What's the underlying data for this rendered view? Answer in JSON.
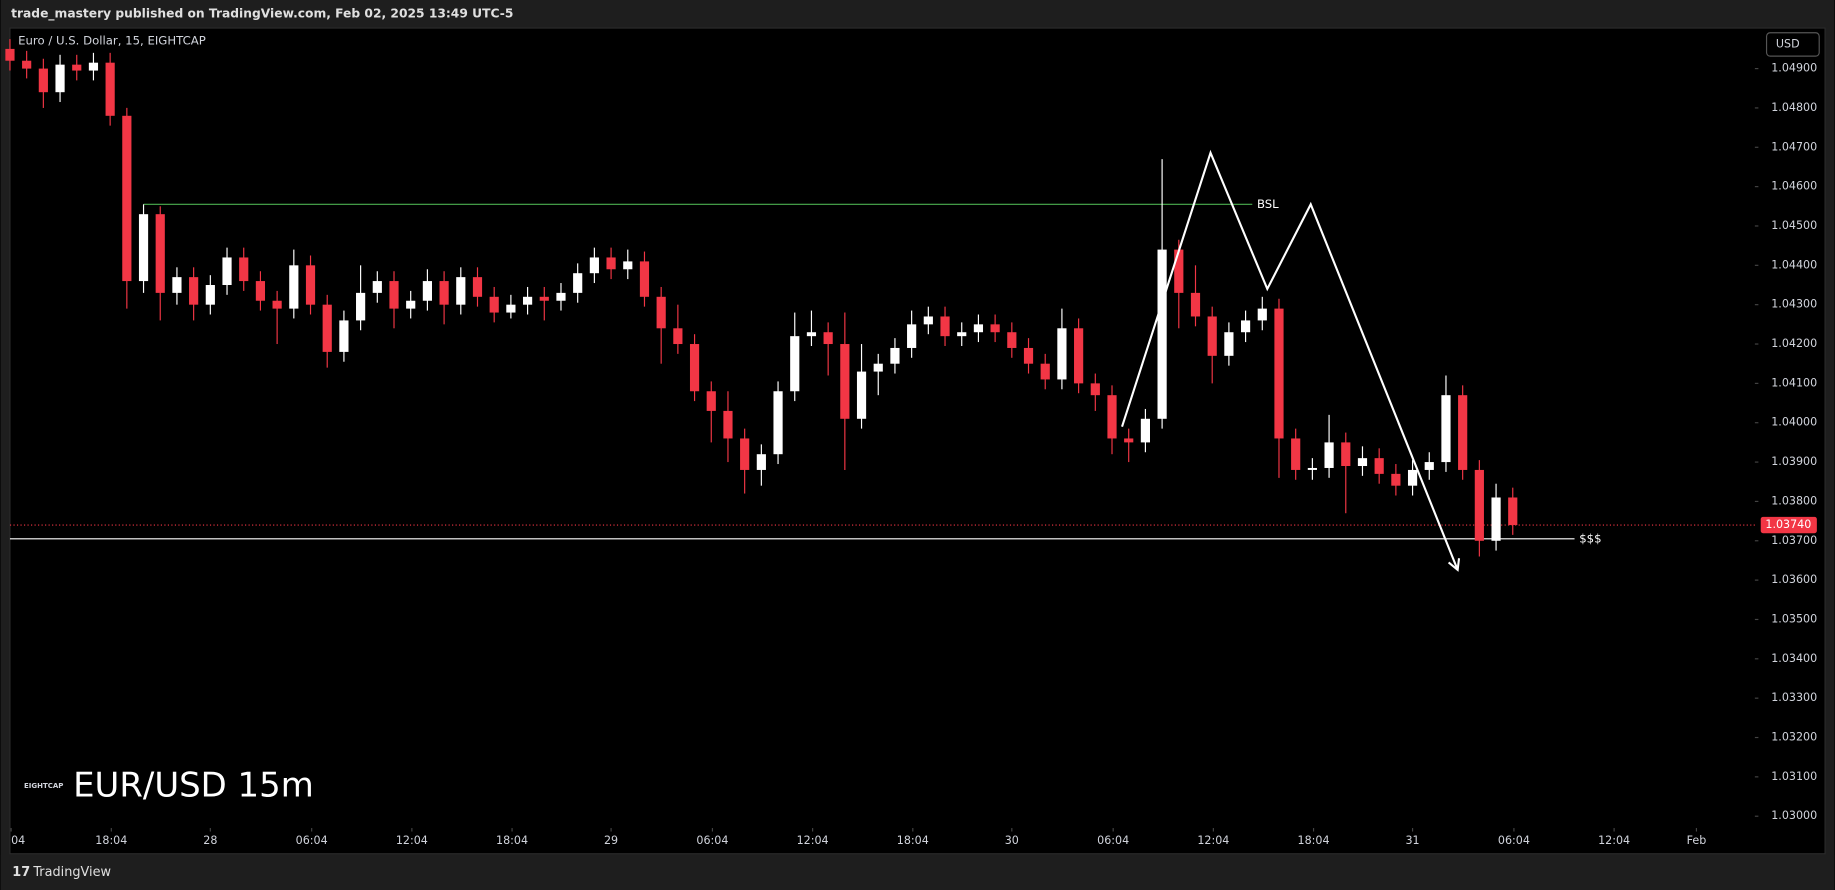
{
  "header": {
    "published": "trade_mastery published on TradingView.com, Feb 02, 2025 13:49 UTC-5"
  },
  "footer": {
    "brand": "TradingView"
  },
  "currency_button": "USD",
  "broker_logo": "EIGHTCAP",
  "watermark": "EUR/USD 15m",
  "chart_data": {
    "type": "candlestick",
    "title": "Euro / U.S. Dollar, 15, EIGHTCAP",
    "up_color": "#ffffff",
    "down_color": "#f23645",
    "x": [
      12,
      13,
      14,
      15,
      16,
      17,
      18,
      19,
      20,
      21,
      22,
      23,
      24,
      25,
      26,
      27,
      28,
      29,
      30,
      31,
      32,
      33,
      34,
      35,
      36,
      37,
      38,
      39,
      40,
      41,
      42,
      43,
      44,
      45,
      46,
      47,
      48,
      49,
      50,
      51,
      52,
      53,
      54,
      55,
      56,
      57,
      58,
      59,
      60,
      61,
      62,
      63,
      64,
      65,
      66,
      67,
      68,
      69,
      70,
      71,
      72,
      73,
      74,
      75,
      76,
      77,
      78,
      79,
      80,
      81,
      82,
      83,
      84,
      85,
      86,
      87,
      88,
      89,
      90,
      91,
      92,
      93,
      94,
      95,
      96,
      97,
      98,
      99,
      100,
      101,
      102
    ],
    "open": [
      1.0495,
      1.0492,
      1.049,
      1.0484,
      1.0491,
      1.04895,
      1.04915,
      1.0478,
      1.0436,
      1.0453,
      1.0433,
      1.0437,
      1.043,
      1.0435,
      1.0442,
      1.0436,
      1.0431,
      1.0429,
      1.044,
      1.043,
      1.0418,
      1.0426,
      1.0433,
      1.0436,
      1.0429,
      1.0431,
      1.0436,
      1.043,
      1.0437,
      1.0432,
      1.0428,
      1.043,
      1.0432,
      1.0431,
      1.0433,
      1.0438,
      1.0442,
      1.0439,
      1.0441,
      1.0432,
      1.0424,
      1.042,
      1.0408,
      1.0403,
      1.0396,
      1.0388,
      1.0392,
      1.0408,
      1.0422,
      1.0423,
      1.042,
      1.0401,
      1.0413,
      1.0415,
      1.0419,
      1.0425,
      1.0427,
      1.0422,
      1.0423,
      1.0425,
      1.0423,
      1.0419,
      1.0415,
      1.0411,
      1.0424,
      1.041,
      1.0407,
      1.0396,
      1.0395,
      1.0401,
      1.0444,
      1.0433,
      1.0427,
      1.0417,
      1.0423,
      1.0426,
      1.0429,
      1.0396,
      1.0388,
      1.03885,
      1.0395,
      1.0389,
      1.0391,
      1.0387,
      1.0384,
      1.0388,
      1.039,
      1.0407,
      1.0388,
      1.037,
      1.0381
    ],
    "high": [
      1.04975,
      1.04945,
      1.04925,
      1.04935,
      1.04935,
      1.0494,
      1.0494,
      1.048,
      1.04555,
      1.0455,
      1.04395,
      1.04395,
      1.04375,
      1.04445,
      1.04445,
      1.04385,
      1.04335,
      1.0444,
      1.04425,
      1.04325,
      1.04285,
      1.044,
      1.04385,
      1.04385,
      1.04335,
      1.0439,
      1.04385,
      1.04395,
      1.04395,
      1.04345,
      1.04325,
      1.04345,
      1.04345,
      1.04355,
      1.04405,
      1.04445,
      1.04445,
      1.0444,
      1.04435,
      1.04345,
      1.043,
      1.04225,
      1.04105,
      1.0408,
      1.03985,
      1.03945,
      1.04105,
      1.0428,
      1.04285,
      1.04255,
      1.0428,
      1.042,
      1.04175,
      1.04215,
      1.04285,
      1.04295,
      1.04295,
      1.04255,
      1.04275,
      1.04275,
      1.04255,
      1.04215,
      1.04175,
      1.0429,
      1.04265,
      1.04125,
      1.04095,
      1.03985,
      1.04035,
      1.0467,
      1.04465,
      1.044,
      1.04295,
      1.04255,
      1.04285,
      1.0432,
      1.04315,
      1.03985,
      1.0391,
      1.0402,
      1.03975,
      1.0394,
      1.03935,
      1.03895,
      1.03905,
      1.03925,
      1.0412,
      1.04095,
      1.03905,
      1.03845,
      1.03835
    ],
    "low": [
      1.04895,
      1.04875,
      1.048,
      1.04815,
      1.0487,
      1.0487,
      1.04755,
      1.0429,
      1.0433,
      1.0426,
      1.043,
      1.0426,
      1.04275,
      1.04325,
      1.04335,
      1.04285,
      1.042,
      1.04265,
      1.04275,
      1.0414,
      1.04155,
      1.04235,
      1.04305,
      1.0424,
      1.04265,
      1.04285,
      1.0425,
      1.04275,
      1.04295,
      1.04255,
      1.04265,
      1.04275,
      1.0426,
      1.04285,
      1.04305,
      1.04355,
      1.04365,
      1.04365,
      1.04295,
      1.0415,
      1.04175,
      1.04055,
      1.0395,
      1.039,
      1.0382,
      1.0384,
      1.03895,
      1.04055,
      1.04195,
      1.0412,
      1.0388,
      1.03985,
      1.0407,
      1.04125,
      1.04165,
      1.04225,
      1.04195,
      1.04195,
      1.04205,
      1.04205,
      1.04165,
      1.04125,
      1.04085,
      1.04085,
      1.04075,
      1.0403,
      1.0392,
      1.039,
      1.03925,
      1.03985,
      1.0424,
      1.04245,
      1.041,
      1.04145,
      1.04205,
      1.04235,
      1.0386,
      1.03855,
      1.03855,
      1.0386,
      1.0377,
      1.03865,
      1.03845,
      1.03815,
      1.03815,
      1.03855,
      1.03875,
      1.03855,
      1.0366,
      1.03675,
      1.03715
    ],
    "close": [
      1.0492,
      1.049,
      1.0484,
      1.0491,
      1.04895,
      1.04915,
      1.0478,
      1.0436,
      1.0453,
      1.0433,
      1.0437,
      1.043,
      1.0435,
      1.0442,
      1.0436,
      1.0431,
      1.0429,
      1.044,
      1.043,
      1.0418,
      1.0426,
      1.0433,
      1.0436,
      1.0429,
      1.0431,
      1.0436,
      1.043,
      1.0437,
      1.0432,
      1.0428,
      1.043,
      1.0432,
      1.0431,
      1.0433,
      1.0438,
      1.0442,
      1.0439,
      1.0441,
      1.0432,
      1.0424,
      1.042,
      1.0408,
      1.0403,
      1.0396,
      1.0388,
      1.0392,
      1.0408,
      1.0422,
      1.0423,
      1.042,
      1.0401,
      1.0413,
      1.0415,
      1.0419,
      1.0425,
      1.0427,
      1.0422,
      1.0423,
      1.0425,
      1.0423,
      1.0419,
      1.0415,
      1.0411,
      1.0424,
      1.041,
      1.0407,
      1.0396,
      1.0395,
      1.0401,
      1.0444,
      1.0433,
      1.0427,
      1.0417,
      1.0423,
      1.0426,
      1.0429,
      1.0396,
      1.0388,
      1.03885,
      1.0395,
      1.0389,
      1.0391,
      1.0387,
      1.0384,
      1.0388,
      1.039,
      1.0407,
      1.0388,
      1.037,
      1.0381,
      1.0374
    ],
    "xlim": [
      12,
      116.5
    ],
    "ylim": [
      1.0297,
      1.05
    ],
    "xticks": [
      {
        "value": 12.07,
        "label": "04"
      },
      {
        "value": 18.07,
        "label": "18:04"
      },
      {
        "value": 24,
        "label": "28"
      },
      {
        "value": 30.07,
        "label": "06:04"
      },
      {
        "value": 36.07,
        "label": "12:04"
      },
      {
        "value": 42.07,
        "label": "18:04"
      },
      {
        "value": 48,
        "label": "29"
      },
      {
        "value": 54.07,
        "label": "06:04"
      },
      {
        "value": 60.07,
        "label": "12:04"
      },
      {
        "value": 66.07,
        "label": "18:04"
      },
      {
        "value": 72,
        "label": "30"
      },
      {
        "value": 78.07,
        "label": "06:04"
      },
      {
        "value": 84.07,
        "label": "12:04"
      },
      {
        "value": 90.07,
        "label": "18:04"
      },
      {
        "value": 96,
        "label": "31"
      },
      {
        "value": 102.07,
        "label": "06:04"
      },
      {
        "value": 108.07,
        "label": "12:04"
      },
      {
        "value": 113,
        "label": "Feb"
      }
    ],
    "yticks": [
      {
        "value": 1.049,
        "label": "1.04900"
      },
      {
        "value": 1.048,
        "label": "1.04800"
      },
      {
        "value": 1.047,
        "label": "1.04700"
      },
      {
        "value": 1.046,
        "label": "1.04600"
      },
      {
        "value": 1.045,
        "label": "1.04500"
      },
      {
        "value": 1.044,
        "label": "1.04400"
      },
      {
        "value": 1.043,
        "label": "1.04300"
      },
      {
        "value": 1.042,
        "label": "1.04200"
      },
      {
        "value": 1.041,
        "label": "1.04100"
      },
      {
        "value": 1.04,
        "label": "1.04000"
      },
      {
        "value": 1.039,
        "label": "1.03900"
      },
      {
        "value": 1.038,
        "label": "1.03800"
      },
      {
        "value": 1.037,
        "label": "1.03700"
      },
      {
        "value": 1.036,
        "label": "1.03600"
      },
      {
        "value": 1.035,
        "label": "1.03500"
      },
      {
        "value": 1.034,
        "label": "1.03400"
      },
      {
        "value": 1.033,
        "label": "1.03300"
      },
      {
        "value": 1.032,
        "label": "1.03200"
      },
      {
        "value": 1.031,
        "label": "1.03100"
      },
      {
        "value": 1.03,
        "label": "1.03000"
      }
    ],
    "last_price": {
      "value": 1.0374,
      "label": "1.03740",
      "color": "#f23645"
    },
    "levels": [
      {
        "label": "BSL",
        "value": 1.04555,
        "x": [
          20,
          86.4
        ],
        "color": "#4caf50"
      },
      {
        "label": "$$$",
        "value": 1.03705,
        "x": [
          12,
          105.7
        ],
        "color": "#ffffff"
      }
    ],
    "drawing": {
      "color": "#ffffff",
      "x": [
        78.6,
        83.9,
        87.3,
        89.9,
        98.7
      ],
      "y": [
        1.0399,
        1.04686,
        1.0434,
        1.04555,
        1.03626
      ]
    }
  }
}
